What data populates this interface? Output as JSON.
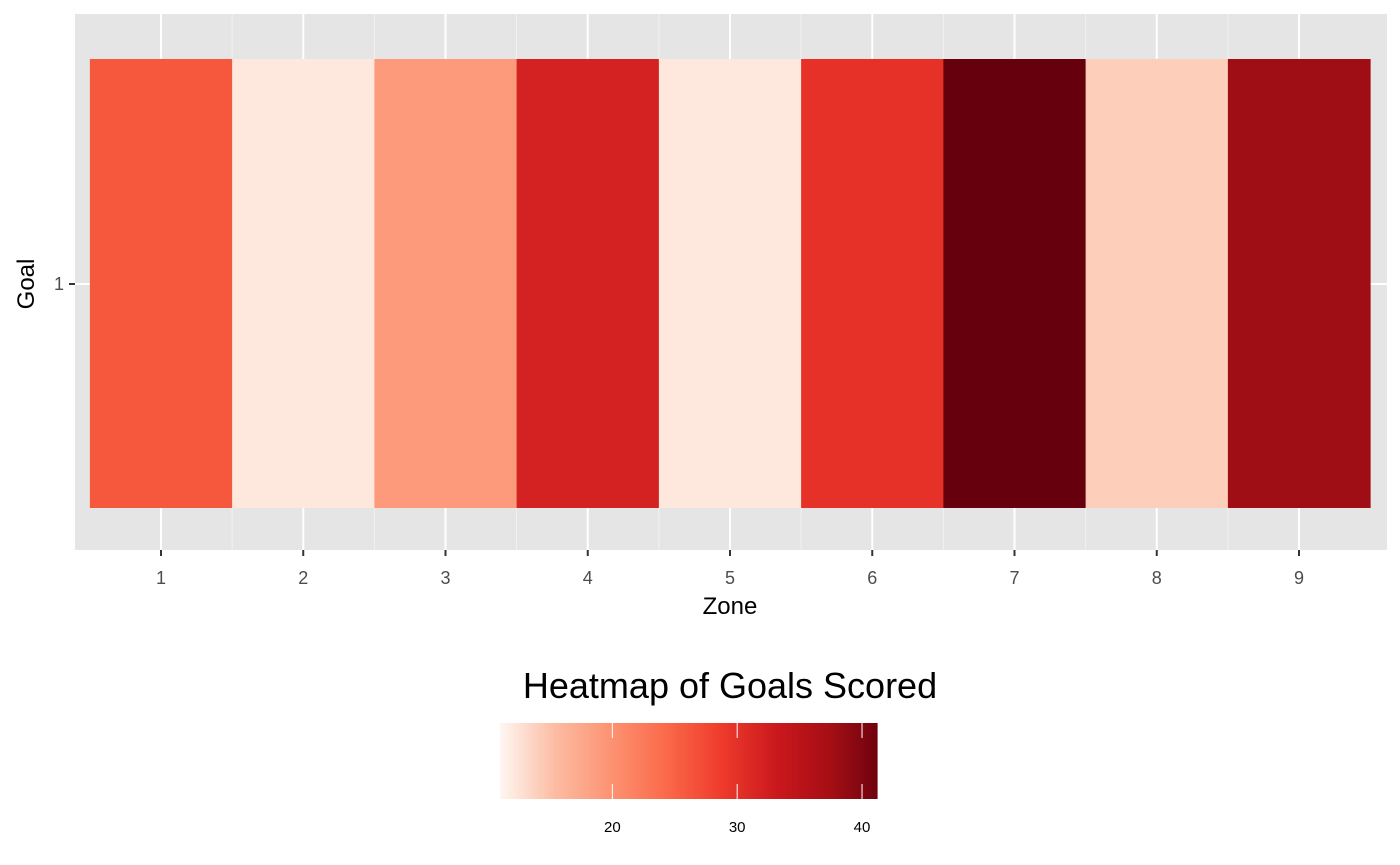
{
  "chart_data": {
    "type": "heatmap",
    "x": [
      1,
      2,
      3,
      4,
      5,
      6,
      7,
      8,
      9
    ],
    "y": [
      1
    ],
    "values": [
      26,
      12,
      19,
      32,
      12,
      30,
      42,
      14,
      38
    ],
    "xlabel": "Zone",
    "ylabel": "Goal",
    "x_tick_labels": [
      "1",
      "2",
      "3",
      "4",
      "5",
      "6",
      "7",
      "8",
      "9"
    ],
    "y_tick_labels": [
      "1"
    ],
    "legend": {
      "title": "Heatmap of Goals Scored",
      "ticks": [
        20,
        30,
        40
      ],
      "tick_labels": [
        "20",
        "30",
        "40"
      ],
      "range": [
        11,
        42
      ],
      "placement": "bottom"
    },
    "color_scale": [
      "#fff5f0",
      "#fcbba1",
      "#fc9272",
      "#fb6a4a",
      "#ef3b2c",
      "#cb181d",
      "#a50f15",
      "#67000d"
    ],
    "panel_background": "#e5e5e5",
    "grid": true
  }
}
